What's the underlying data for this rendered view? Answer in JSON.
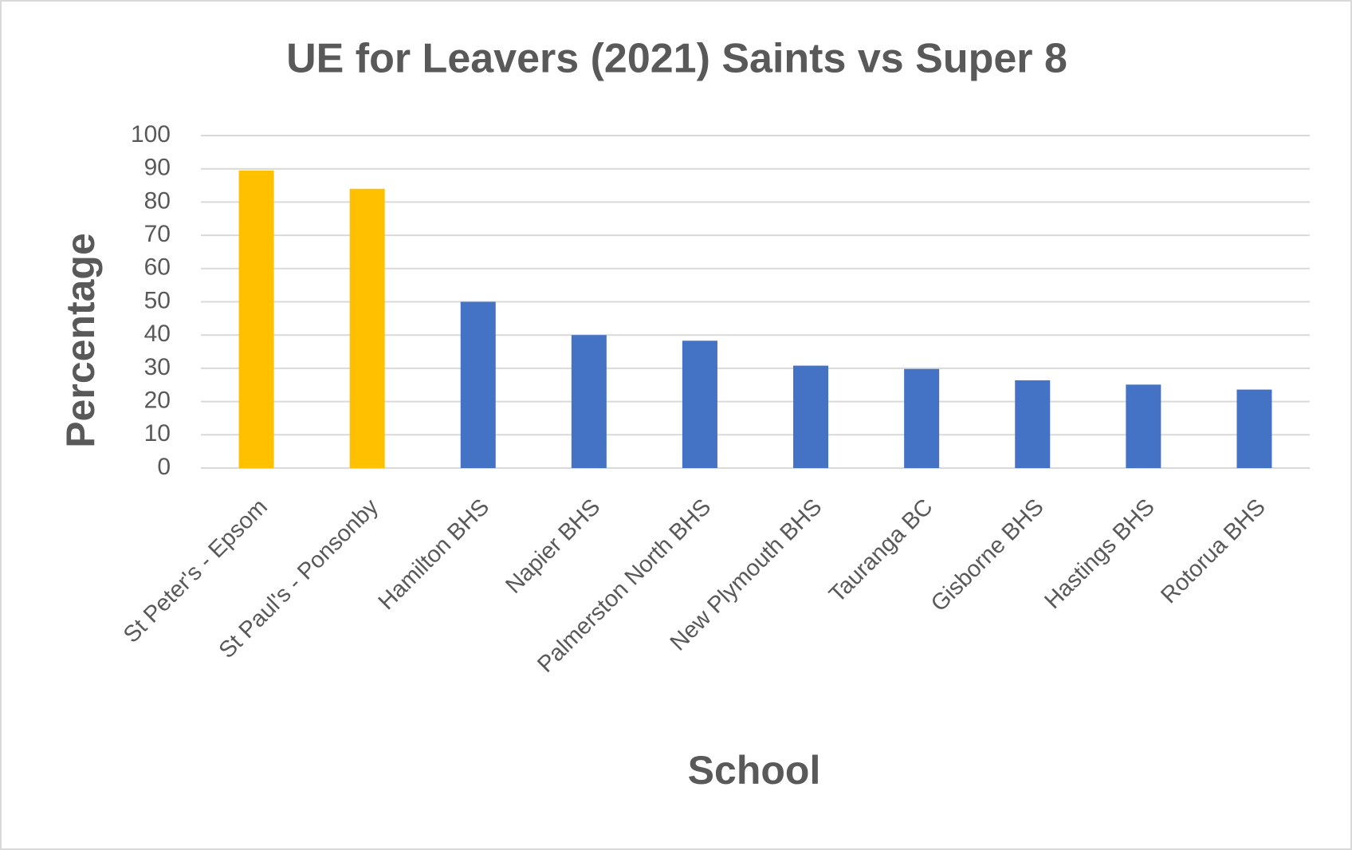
{
  "chart_data": {
    "type": "bar",
    "title": "UE for Leavers (2021) Saints vs Super 8",
    "x_label": "School",
    "y_label": "Percentage",
    "categories": [
      "St Peter's - Epsom",
      "St Paul's - Ponsonby",
      "Hamilton BHS",
      "Napier BHS",
      "Palmerston North BHS",
      "New Plymouth BHS",
      "Tauranga BC",
      "Gisborne BHS",
      "Hastings BHS",
      "Rotorua BHS"
    ],
    "values": [
      89.5,
      84,
      50,
      40,
      38.3,
      30.8,
      29.8,
      26.4,
      25.1,
      23.6
    ],
    "colors": [
      "#ffc000",
      "#ffc000",
      "#4472c4",
      "#4472c4",
      "#4472c4",
      "#4472c4",
      "#4472c4",
      "#4472c4",
      "#4472c4",
      "#4472c4"
    ],
    "ylim": [
      0,
      100
    ],
    "yticks": [
      0,
      10,
      20,
      30,
      40,
      50,
      60,
      70,
      80,
      90,
      100
    ],
    "grid": true
  }
}
